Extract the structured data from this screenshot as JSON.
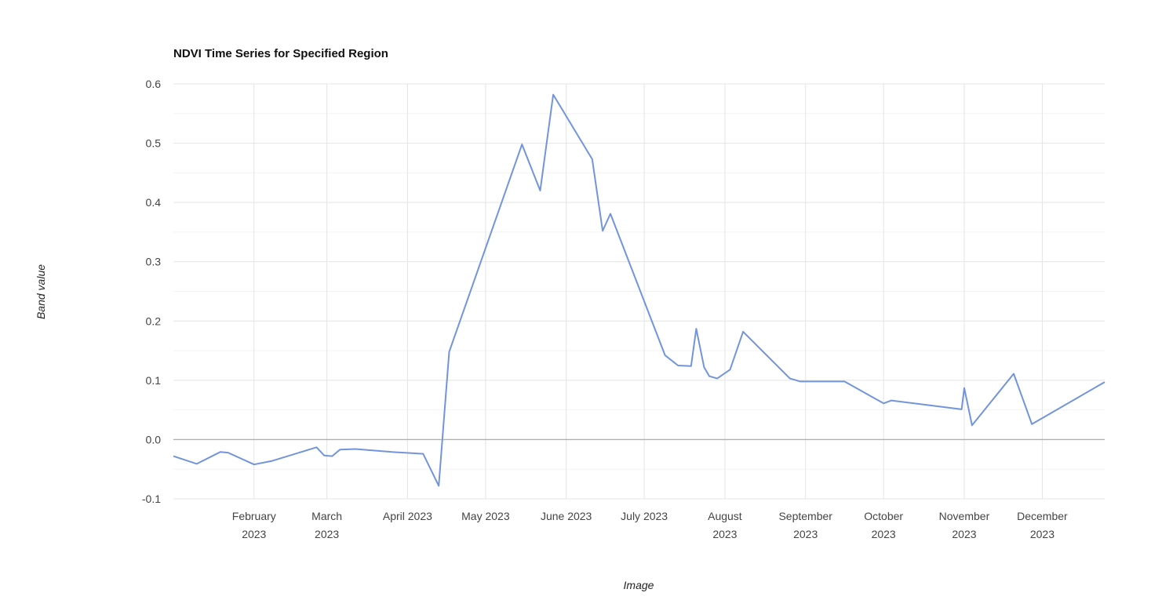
{
  "chart_data": {
    "type": "line",
    "title": "NDVI Time Series for Specified Region",
    "xlabel": "Image",
    "ylabel": "Band value",
    "x_range": [
      "2023-01-01",
      "2023-12-25"
    ],
    "ylim": [
      -0.1,
      0.6
    ],
    "yticks": [
      "-0.1",
      "0.0",
      "0.1",
      "0.2",
      "0.3",
      "0.4",
      "0.5",
      "0.6"
    ],
    "xticks": [
      {
        "date": "2023-02-01",
        "label": [
          "February",
          "2023"
        ]
      },
      {
        "date": "2023-03-01",
        "label": [
          "March",
          "2023"
        ]
      },
      {
        "date": "2023-04-01",
        "label": [
          "April 2023"
        ]
      },
      {
        "date": "2023-05-01",
        "label": [
          "May 2023"
        ]
      },
      {
        "date": "2023-06-01",
        "label": [
          "June 2023"
        ]
      },
      {
        "date": "2023-07-01",
        "label": [
          "July 2023"
        ]
      },
      {
        "date": "2023-08-01",
        "label": [
          "August",
          "2023"
        ]
      },
      {
        "date": "2023-09-01",
        "label": [
          "September",
          "2023"
        ]
      },
      {
        "date": "2023-10-01",
        "label": [
          "October",
          "2023"
        ]
      },
      {
        "date": "2023-11-01",
        "label": [
          "November",
          "2023"
        ]
      },
      {
        "date": "2023-12-01",
        "label": [
          "December",
          "2023"
        ]
      }
    ],
    "grid": true,
    "legend": "none",
    "line_color": "#7294dc",
    "series": [
      {
        "points": [
          [
            "2023-01-01",
            -0.028
          ],
          [
            "2023-01-10",
            -0.041
          ],
          [
            "2023-01-19",
            -0.021
          ],
          [
            "2023-01-22",
            -0.022
          ],
          [
            "2023-02-01",
            -0.042
          ],
          [
            "2023-02-08",
            -0.036
          ],
          [
            "2023-02-25",
            -0.013
          ],
          [
            "2023-02-28",
            -0.027
          ],
          [
            "2023-03-03",
            -0.028
          ],
          [
            "2023-03-06",
            -0.017
          ],
          [
            "2023-03-12",
            -0.016
          ],
          [
            "2023-03-26",
            -0.021
          ],
          [
            "2023-04-07",
            -0.024
          ],
          [
            "2023-04-13",
            -0.078
          ],
          [
            "2023-04-17",
            0.148
          ],
          [
            "2023-05-15",
            0.498
          ],
          [
            "2023-05-22",
            0.42
          ],
          [
            "2023-05-27",
            0.582
          ],
          [
            "2023-06-11",
            0.473
          ],
          [
            "2023-06-15",
            0.352
          ],
          [
            "2023-06-18",
            0.381
          ],
          [
            "2023-07-09",
            0.142
          ],
          [
            "2023-07-14",
            0.125
          ],
          [
            "2023-07-19",
            0.124
          ],
          [
            "2023-07-21",
            0.187
          ],
          [
            "2023-07-24",
            0.122
          ],
          [
            "2023-07-26",
            0.107
          ],
          [
            "2023-07-29",
            0.103
          ],
          [
            "2023-08-03",
            0.118
          ],
          [
            "2023-08-08",
            0.182
          ],
          [
            "2023-08-26",
            0.103
          ],
          [
            "2023-08-30",
            0.098
          ],
          [
            "2023-09-16",
            0.098
          ],
          [
            "2023-10-01",
            0.061
          ],
          [
            "2023-10-04",
            0.066
          ],
          [
            "2023-10-31",
            0.051
          ],
          [
            "2023-11-01",
            0.087
          ],
          [
            "2023-11-04",
            0.024
          ],
          [
            "2023-11-20",
            0.111
          ],
          [
            "2023-11-27",
            0.026
          ],
          [
            "2023-12-25",
            0.097
          ]
        ]
      }
    ]
  }
}
